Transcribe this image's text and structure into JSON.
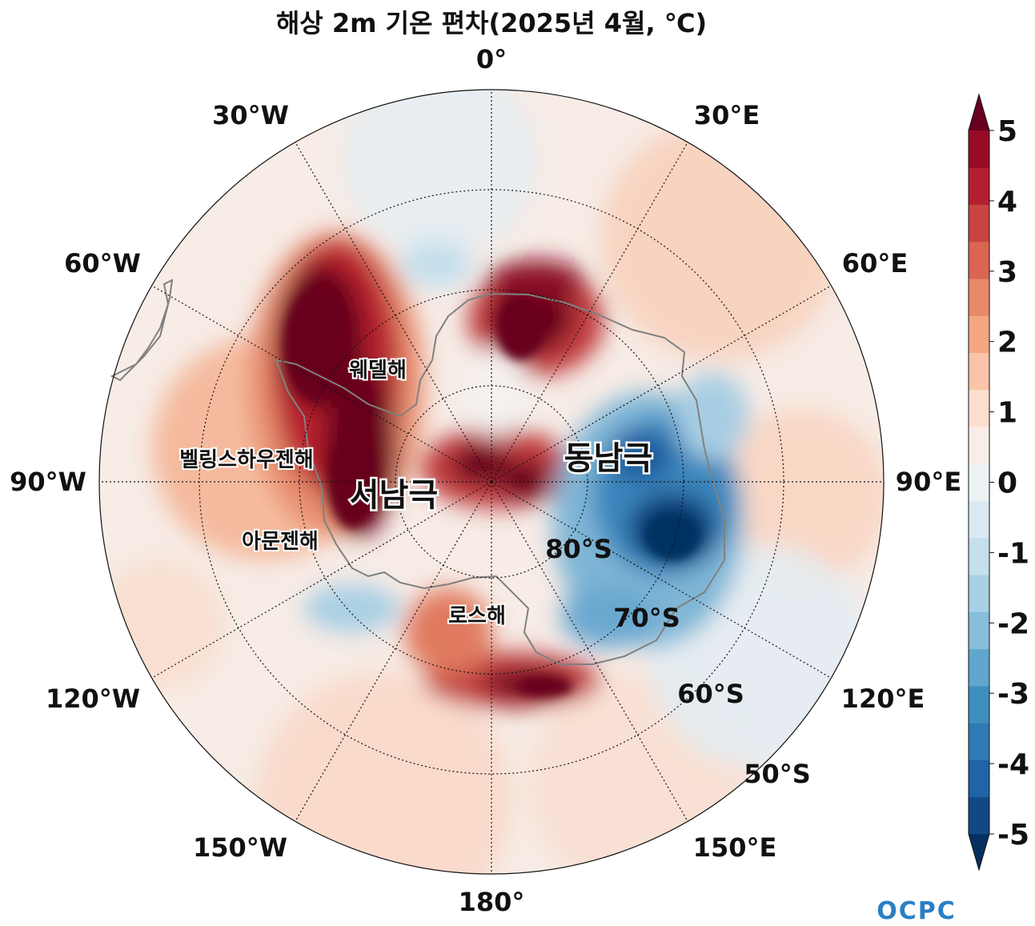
{
  "title": "해상 2m 기온 편차(2025년 4월, ℃)",
  "map": {
    "projection": "south-polar-stereographic",
    "meridian_labels": [
      "0°",
      "30°E",
      "60°E",
      "90°E",
      "120°E",
      "150°E",
      "180°",
      "150°W",
      "120°W",
      "90°W",
      "60°W",
      "30°W"
    ],
    "latitude_labels": [
      "80°S",
      "70°S",
      "60°S",
      "50°S"
    ],
    "regions": {
      "weddell_sea": "웨델해",
      "bellingshausen_sea": "벨링스하우젠해",
      "amundsen_sea": "아문젠해",
      "ross_sea": "로스해",
      "west_antarctica": "서남극",
      "east_antarctica": "동남극"
    },
    "anomalies": {
      "warm": [
        "서남극",
        "웨델해",
        "벨링스하우젠해",
        "로스해"
      ],
      "cold": [
        "동남극"
      ]
    }
  },
  "colorbar": {
    "min": -5,
    "max": 5,
    "step": 0.5,
    "extend": "both",
    "tick_labels": [
      "5",
      "4",
      "3",
      "2",
      "1",
      "0",
      "-1",
      "-2",
      "-3",
      "-4",
      "-5"
    ],
    "colors": [
      "#053061",
      "#124984",
      "#1f63a8",
      "#2f79b5",
      "#3f8ec0",
      "#61a6cd",
      "#87beda",
      "#a7d0e4",
      "#c5dfec",
      "#dbeaf2",
      "#edf2f5",
      "#f9eee7",
      "#fbe0d0",
      "#f9c4a9",
      "#f4a683",
      "#e8896a",
      "#d96552",
      "#c74541",
      "#b41f2f",
      "#970a26",
      "#67001f"
    ]
  },
  "logo": {
    "text": "OCPC"
  }
}
